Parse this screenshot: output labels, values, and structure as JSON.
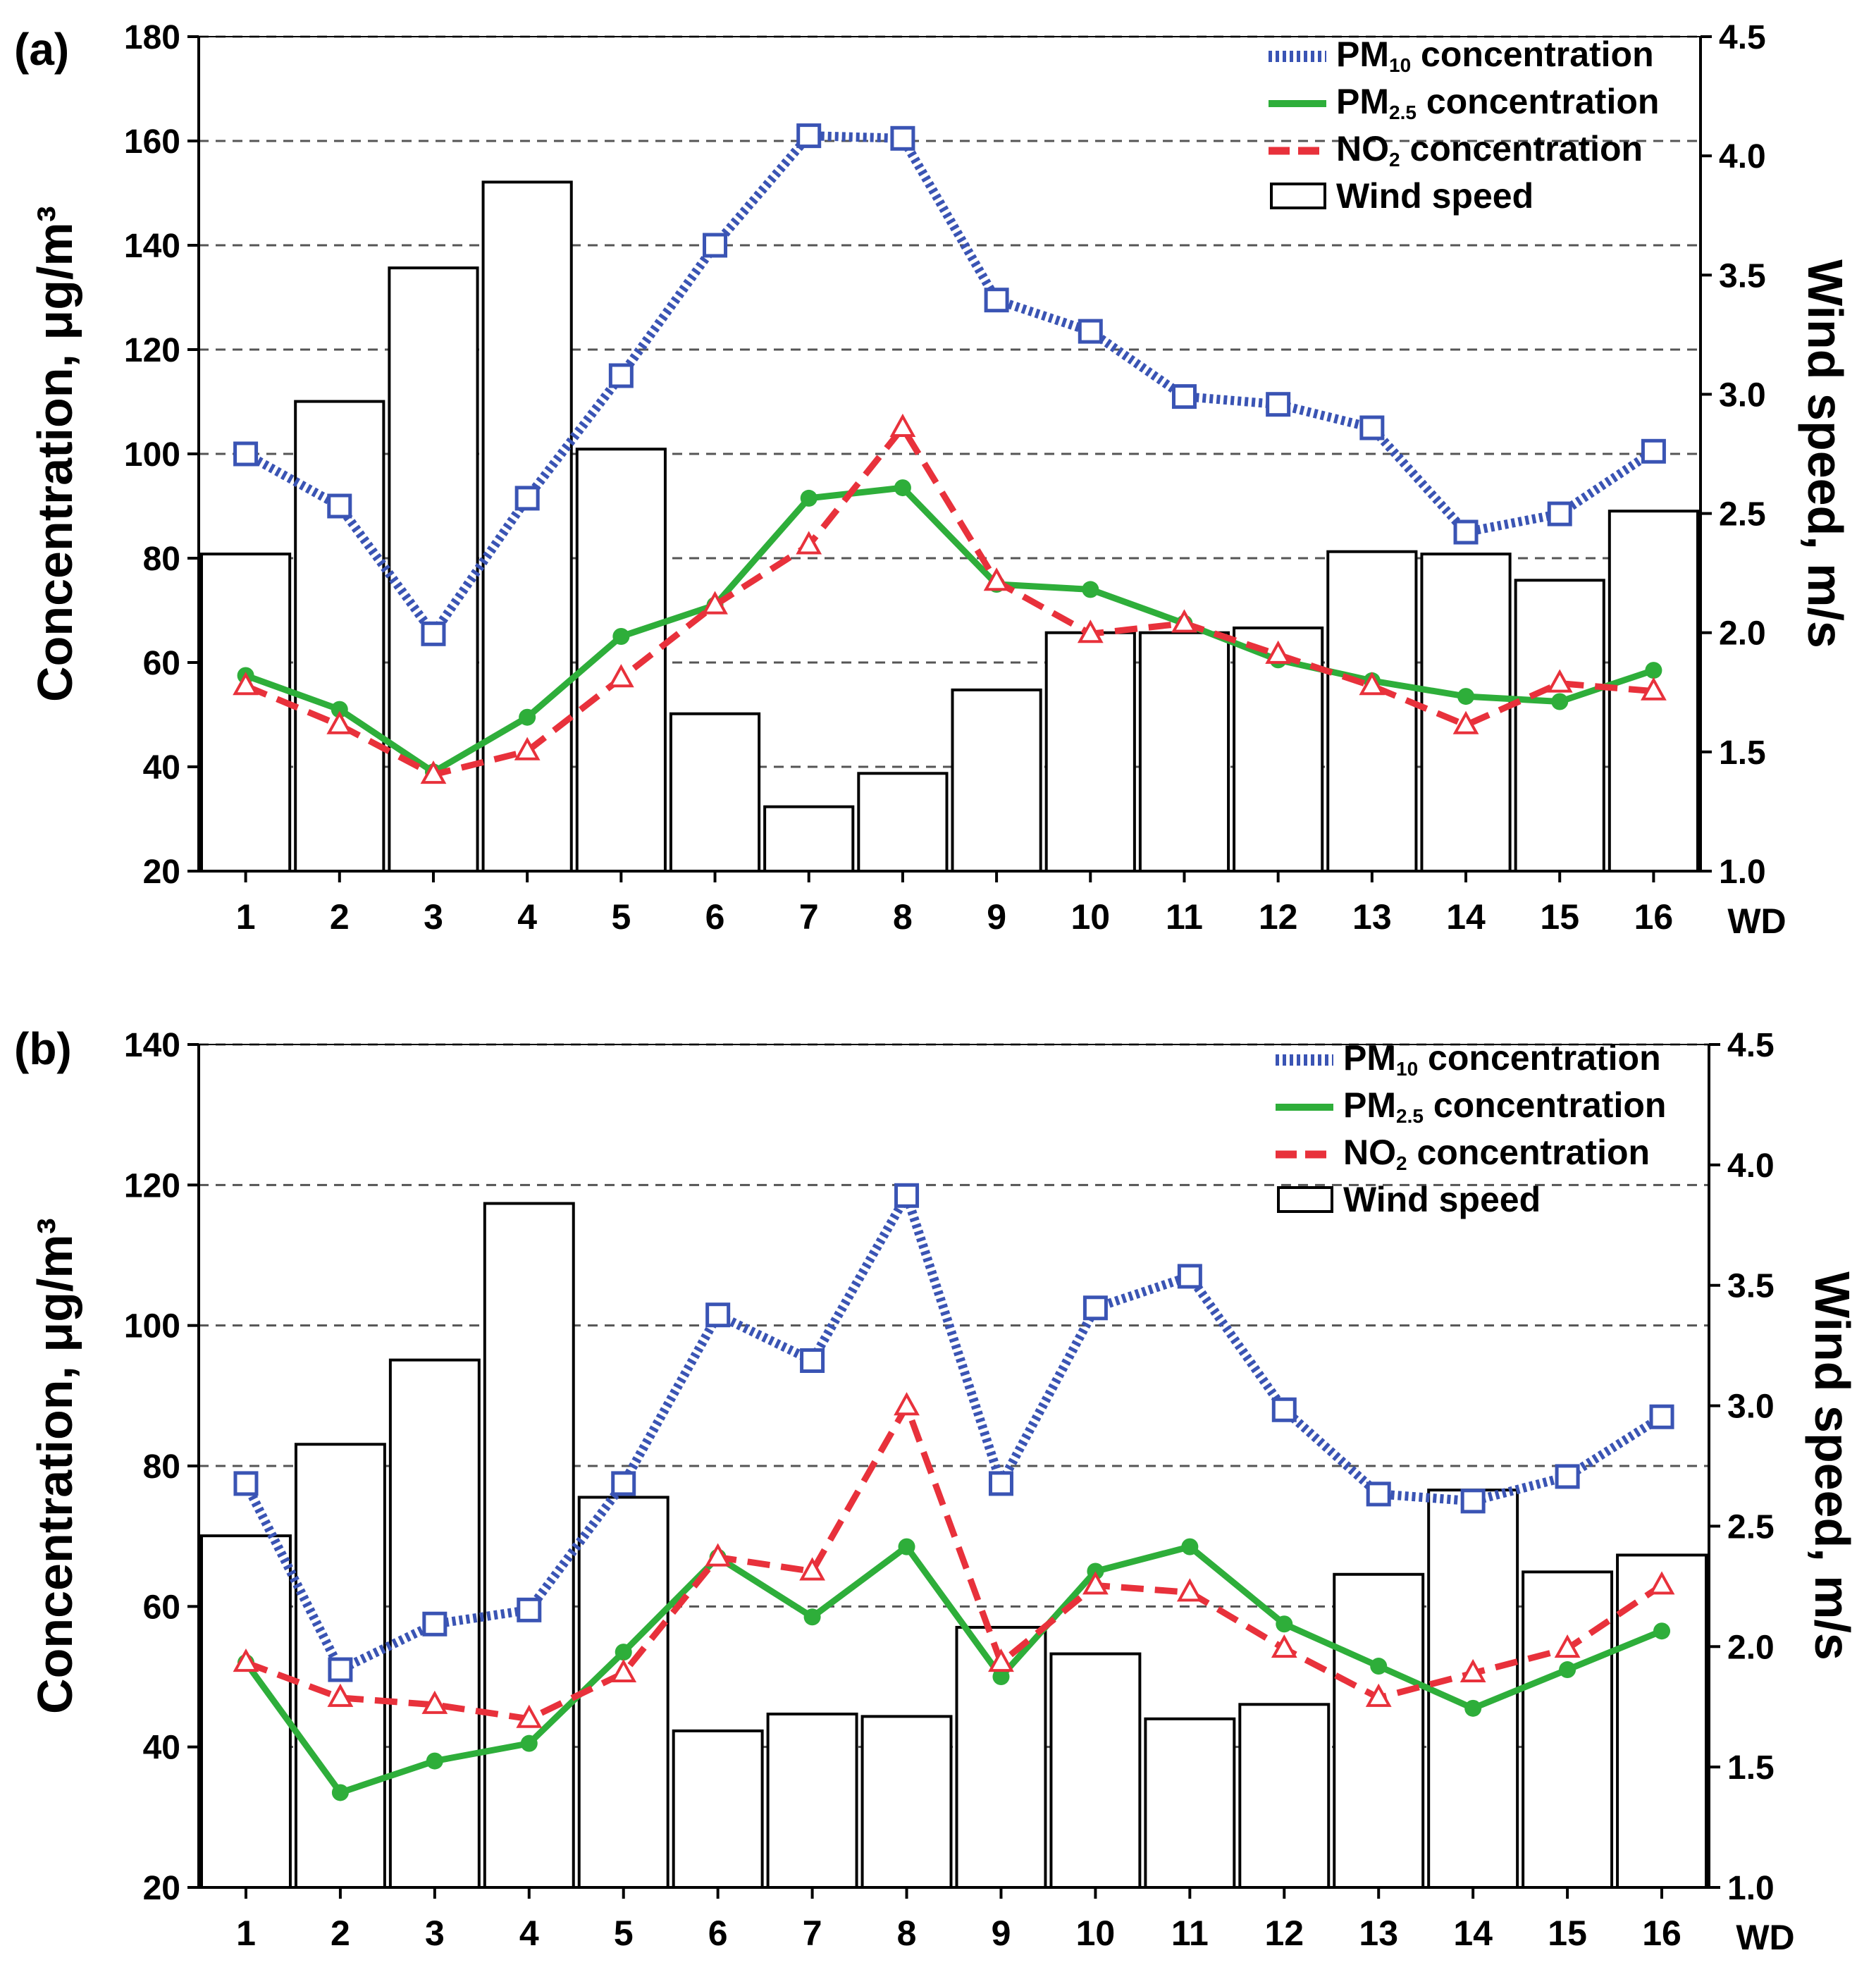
{
  "chart_data": [
    {
      "panel_label": "(a)",
      "type": "bar+line",
      "categories": [
        "1",
        "2",
        "3",
        "4",
        "5",
        "6",
        "7",
        "8",
        "9",
        "10",
        "11",
        "12",
        "13",
        "14",
        "15",
        "16"
      ],
      "x_axis_label": "WD",
      "ylabel_left": "Concentration, μg/m³",
      "ylabel_right": "Wind speed, m/s",
      "ylim_left": [
        20,
        180
      ],
      "yticks_left": [
        20,
        40,
        60,
        80,
        100,
        120,
        140,
        160,
        180
      ],
      "ylim_right": [
        1.0,
        4.5
      ],
      "yticks_right": [
        "1.0",
        "1.5",
        "2.0",
        "2.5",
        "3.0",
        "3.5",
        "4.0",
        "4.5"
      ],
      "grid": "horizontal dashed",
      "legend_position": "top-right",
      "series": [
        {
          "name": "PM",
          "sub": "10",
          "suffix": " concentration",
          "kind": "line",
          "axis": "left",
          "color": "#3a54b4",
          "style": "dotted",
          "marker": "square",
          "values": [
            100,
            90,
            65.5,
            91.5,
            115,
            140,
            161,
            160.5,
            129.5,
            123.5,
            111,
            109.5,
            105,
            85,
            88.5,
            100.5
          ]
        },
        {
          "name": "PM",
          "sub": "2.5",
          "suffix": " concentration",
          "kind": "line",
          "axis": "left",
          "color": "#2eae3a",
          "style": "solid",
          "marker": "circle",
          "values": [
            57.5,
            51,
            39,
            49.5,
            65,
            71,
            91.5,
            93.5,
            75,
            74,
            67.5,
            60.5,
            56.5,
            53.5,
            52.5,
            58.5
          ]
        },
        {
          "name": "NO",
          "sub": "2",
          "suffix": " concentration",
          "kind": "line",
          "axis": "left",
          "color": "#e8313b",
          "style": "dashed",
          "marker": "triangle",
          "values": [
            55.5,
            48,
            38.5,
            43,
            57,
            71,
            82.5,
            105,
            75.5,
            65.5,
            67.5,
            61.5,
            55.5,
            48,
            56,
            54.5
          ]
        },
        {
          "name": "Wind speed",
          "sub": "",
          "suffix": "",
          "kind": "bar",
          "axis": "right",
          "color": "#000000",
          "values": [
            2.33,
            2.97,
            3.53,
            3.89,
            2.77,
            1.66,
            1.27,
            1.41,
            1.76,
            2.0,
            2.0,
            2.02,
            2.34,
            2.33,
            2.22,
            2.51
          ]
        }
      ]
    },
    {
      "panel_label": "(b)",
      "type": "bar+line",
      "categories": [
        "1",
        "2",
        "3",
        "4",
        "5",
        "6",
        "7",
        "8",
        "9",
        "10",
        "11",
        "12",
        "13",
        "14",
        "15",
        "16"
      ],
      "x_axis_label": "WD",
      "ylabel_left": "Concentration, μg/m³",
      "ylabel_right": "Wind speed, m/s",
      "ylim_left": [
        20,
        140
      ],
      "yticks_left": [
        20,
        40,
        60,
        80,
        100,
        120,
        140
      ],
      "ylim_right": [
        1.0,
        4.5
      ],
      "yticks_right": [
        "1.0",
        "1.5",
        "2.0",
        "2.5",
        "3.0",
        "3.5",
        "4.0",
        "4.5"
      ],
      "grid": "horizontal dashed",
      "legend_position": "top-right",
      "series": [
        {
          "name": "PM",
          "sub": "10",
          "suffix": " concentration",
          "kind": "line",
          "axis": "left",
          "color": "#3a54b4",
          "style": "dotted",
          "marker": "square",
          "values": [
            77.5,
            51,
            57.5,
            59.5,
            77.5,
            101.5,
            95,
            118.5,
            77.5,
            102.5,
            107,
            88,
            76,
            75,
            78.5,
            87
          ]
        },
        {
          "name": "PM",
          "sub": "2.5",
          "suffix": " concentration",
          "kind": "line",
          "axis": "left",
          "color": "#2eae3a",
          "style": "solid",
          "marker": "circle",
          "values": [
            52,
            33.5,
            38,
            40.5,
            53.5,
            67,
            58.5,
            68.5,
            50,
            65,
            68.5,
            57.5,
            51.5,
            45.5,
            51,
            56.5
          ]
        },
        {
          "name": "NO",
          "sub": "2",
          "suffix": " concentration",
          "kind": "line",
          "axis": "left",
          "color": "#e8313b",
          "style": "dashed",
          "marker": "triangle",
          "values": [
            52,
            47,
            46,
            44,
            50.5,
            67,
            65,
            88.5,
            52,
            63,
            62,
            54,
            47,
            50.5,
            54,
            63
          ]
        },
        {
          "name": "Wind speed",
          "sub": "",
          "suffix": "",
          "kind": "bar",
          "axis": "right",
          "color": "#000000",
          "values": [
            2.46,
            2.84,
            3.19,
            3.84,
            2.62,
            1.65,
            1.72,
            1.71,
            2.08,
            1.97,
            1.7,
            1.76,
            2.3,
            2.65,
            2.31,
            2.38
          ]
        }
      ]
    }
  ]
}
